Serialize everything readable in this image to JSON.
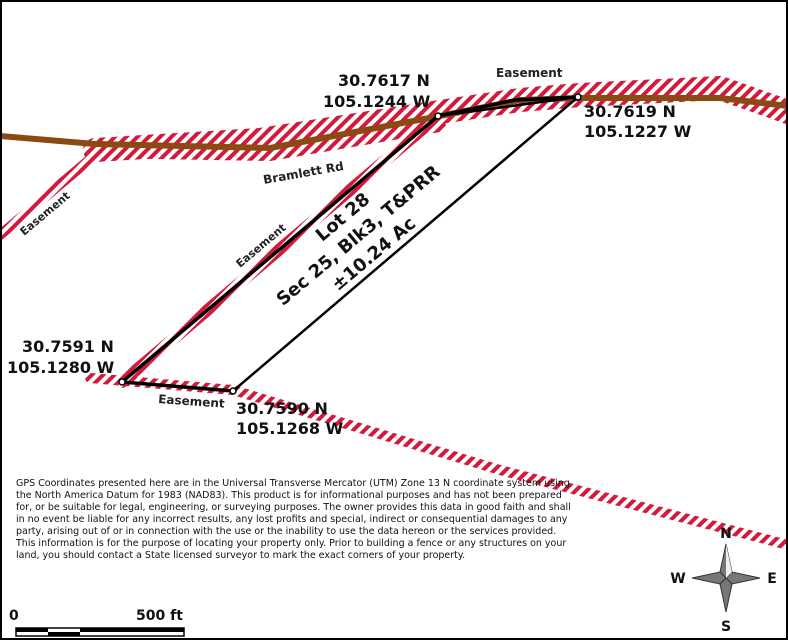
{
  "colors": {
    "easement_stripe": "#d11a3c",
    "easement_white": "#ffffff",
    "road": "#8b4a14",
    "parcel_line": "#000000"
  },
  "easement_labels": {
    "top": "Easement",
    "left_edge": "Easement",
    "middle": "Easement",
    "bottom": "Easement"
  },
  "road_label": "Bramlett Rd",
  "parcel_label": {
    "line1": "Lot 28",
    "line2": "Sec 25, Blk3, T&PRR",
    "line3": "±10.24 Ac"
  },
  "corners": {
    "nw": {
      "lat": "30.7617 N",
      "lon": "105.1244 W"
    },
    "ne": {
      "lat": "30.7619 N",
      "lon": "105.1227 W"
    },
    "sw": {
      "lat": "30.7591 N",
      "lon": "105.1280 W"
    },
    "se": {
      "lat": "30.7590 N",
      "lon": "105.1268 W"
    }
  },
  "disclaimer": "GPS Coordinates presented here are in the Universal Transverse Mercator (UTM) Zone 13 N coordinate system using the North America Datum for 1983 (NAD83).  This product is for informational purposes and has not been prepared for, or be suitable for legal, engineering, or surveying purposes. The owner provides this data in good faith and shall in no event be liable for any incorrect results, any lost profits and special, indirect or consequential damages to any party, arising out of or in connection with the use or the inability to use the data hereon or the services provided. This information is for the purpose of locating your property only.  Prior to building a fence or any structures on your land, you should contact a State licensed surveyor to mark the exact corners of your property.",
  "compass": {
    "n": "N",
    "s": "S",
    "e": "E",
    "w": "W"
  },
  "scale_bar": {
    "start": "0",
    "end": "500 ft"
  }
}
